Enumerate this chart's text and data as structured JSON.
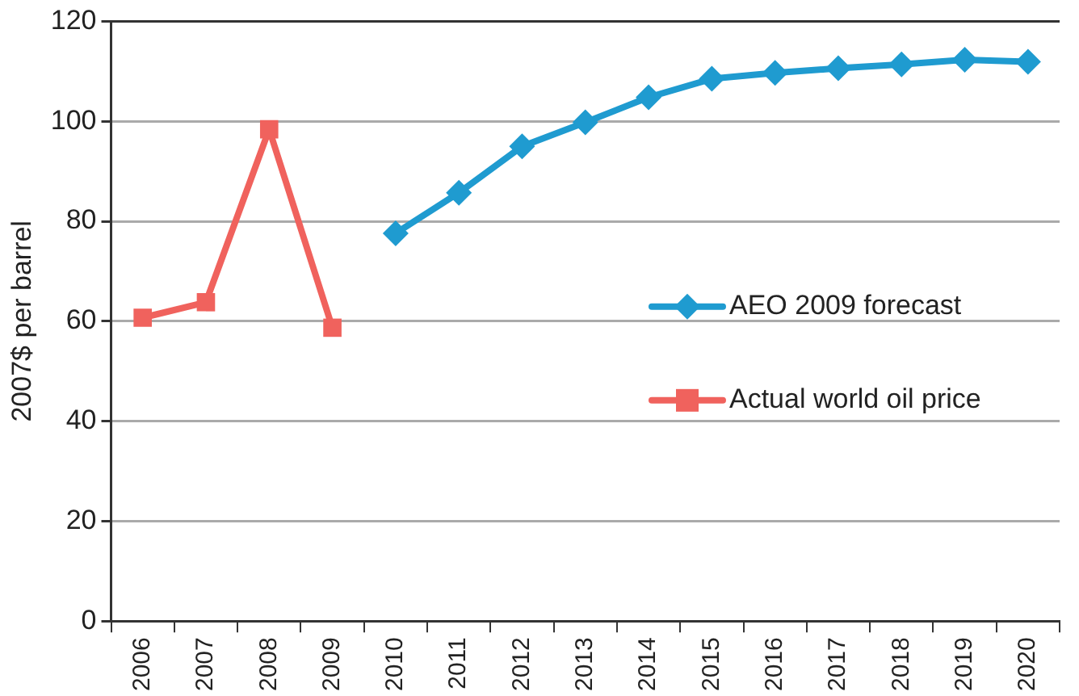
{
  "chart_data": {
    "type": "line",
    "ylabel": "2007$ per barrel",
    "categories": [
      "2006",
      "2007",
      "2008",
      "2009",
      "2010",
      "2011",
      "2012",
      "2013",
      "2014",
      "2015",
      "2016",
      "2017",
      "2018",
      "2019",
      "2020"
    ],
    "series": [
      {
        "name": "AEO 2009 forecast",
        "color": "#1f9bd0",
        "marker": "diamond",
        "values": [
          null,
          null,
          null,
          null,
          77.6,
          85.7,
          95,
          99.8,
          104.8,
          108.5,
          109.7,
          110.6,
          111.4,
          112.3,
          111.9
        ]
      },
      {
        "name": "Actual world oil price",
        "color": "#f0625d",
        "marker": "square",
        "values": [
          60.7,
          63.8,
          98.4,
          58.7,
          null,
          null,
          null,
          null,
          null,
          null,
          null,
          null,
          null,
          null,
          null
        ]
      }
    ],
    "ylim": [
      0,
      120
    ],
    "yticks": [
      0,
      20,
      40,
      60,
      80,
      100,
      120
    ],
    "grid": "y",
    "legend": "right",
    "line_style": "solid"
  }
}
